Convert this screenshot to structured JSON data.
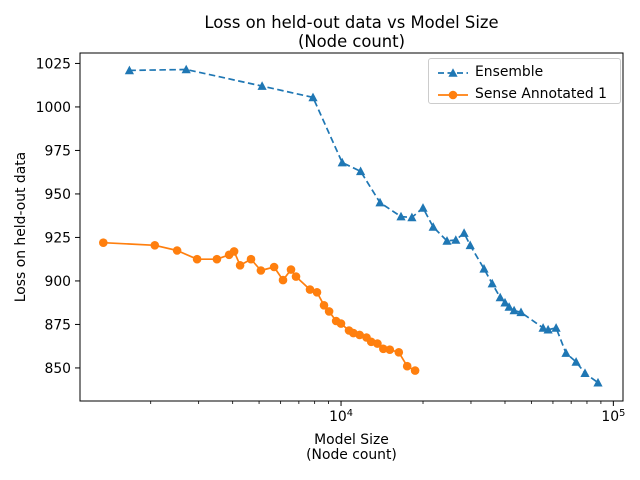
{
  "chart_data": {
    "type": "line",
    "title": "Loss on held-out data vs Model Size",
    "title_line2": "(Node count)",
    "xlabel": "Model Size",
    "xlabel_line2": "(Node count)",
    "ylabel": "Loss on held-out data",
    "x_scale": "log",
    "grid": false,
    "legend_position": "upper right",
    "xlim": [
      1100,
      108500
    ],
    "ylim": [
      831,
      1031
    ],
    "yticks": [
      850,
      875,
      900,
      925,
      950,
      975,
      1000,
      1025
    ],
    "xticks": [
      {
        "base": "10",
        "exp": "4",
        "value": 10000
      },
      {
        "base": "10",
        "exp": "5",
        "value": 100000
      }
    ],
    "series": [
      {
        "name": "Ensemble",
        "color": "#1f77b4",
        "line": "dashed",
        "marker": "triangle-up",
        "points": [
          [
            1670,
            1021
          ],
          [
            2700,
            1021.5
          ],
          [
            5130,
            1012
          ],
          [
            7890,
            1005.5
          ],
          [
            10100,
            968
          ],
          [
            11800,
            963
          ],
          [
            13900,
            945
          ],
          [
            16600,
            937
          ],
          [
            18200,
            936.5
          ],
          [
            20000,
            942
          ],
          [
            21800,
            931
          ],
          [
            24500,
            923
          ],
          [
            26400,
            923.5
          ],
          [
            28300,
            927.5
          ],
          [
            29800,
            920.5
          ],
          [
            33500,
            907
          ],
          [
            35900,
            898.5
          ],
          [
            38400,
            890.5
          ],
          [
            40000,
            887.5
          ],
          [
            41400,
            885
          ],
          [
            43200,
            883
          ],
          [
            45800,
            882
          ],
          [
            55200,
            873
          ],
          [
            57600,
            872
          ],
          [
            61600,
            873
          ],
          [
            67000,
            858.5
          ],
          [
            73000,
            853.5
          ],
          [
            78700,
            847
          ],
          [
            87800,
            841.5
          ]
        ]
      },
      {
        "name": "Sense Annotated 1",
        "color": "#ff7f0e",
        "line": "solid",
        "marker": "circle",
        "points": [
          [
            1340,
            922
          ],
          [
            2070,
            920.5
          ],
          [
            2500,
            917.5
          ],
          [
            2960,
            912.5
          ],
          [
            3500,
            912.5
          ],
          [
            3880,
            915
          ],
          [
            4050,
            917
          ],
          [
            4260,
            909
          ],
          [
            4670,
            912.5
          ],
          [
            5080,
            906
          ],
          [
            5680,
            908
          ],
          [
            6120,
            900.5
          ],
          [
            6550,
            906.5
          ],
          [
            6830,
            902.5
          ],
          [
            7690,
            895
          ],
          [
            8160,
            893.5
          ],
          [
            8660,
            886
          ],
          [
            9040,
            882.5
          ],
          [
            9590,
            877
          ],
          [
            10000,
            875.5
          ],
          [
            10700,
            871.5
          ],
          [
            11100,
            870
          ],
          [
            11700,
            869
          ],
          [
            12400,
            867.5
          ],
          [
            12900,
            865
          ],
          [
            13600,
            864
          ],
          [
            14300,
            861
          ],
          [
            15100,
            860.5
          ],
          [
            16300,
            859
          ],
          [
            17500,
            851
          ],
          [
            18700,
            848.5
          ]
        ]
      }
    ]
  }
}
